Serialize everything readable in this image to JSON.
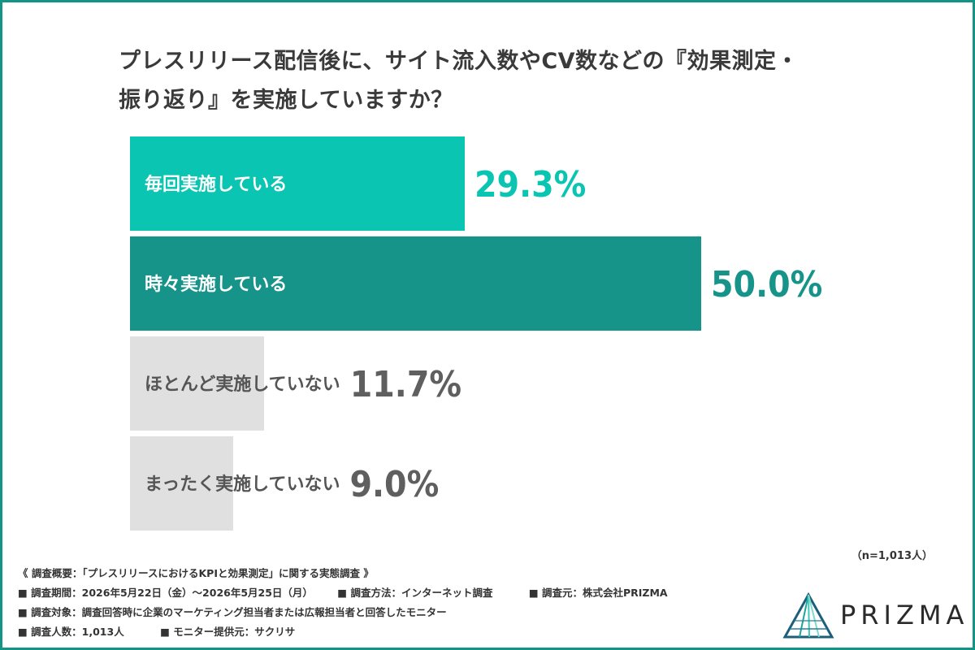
{
  "title_lines": [
    "プレスリリース配信後に、サイト流入数やCV数などの『効果測定・",
    "振り返り』を実施していますか？"
  ],
  "colors": {
    "frame": "#149487",
    "bar_1": "#0bc5b3",
    "bar_2": "#17948a",
    "bar_other": "#e0e0e0",
    "pct_1": "#0bc5b3",
    "pct_2": "#17948a",
    "pct_other": "#5f5f5f"
  },
  "chart_data": {
    "type": "bar",
    "orientation": "horizontal",
    "categories": [
      "毎回実施している",
      "時々実施している",
      "ほとんど実施していない",
      "まったく実施していない"
    ],
    "values": [
      29.3,
      50.0,
      11.7,
      9.0
    ],
    "value_labels": [
      "29.3%",
      "50.0%",
      "11.7%",
      "9.0%"
    ],
    "unit": "%",
    "xlim": [
      0,
      50
    ],
    "grid": false
  },
  "sample_size": "（n=1,013人）",
  "notes": {
    "line1": "《 調査概要：「プレスリリースにおけるKPIと効果測定」に関する実態調査 》",
    "period": "■ 調査期間：2026年5月22日（金）〜2026年5月25日（月）",
    "method": "■ 調査方法：インターネット調査",
    "source": "■ 調査元：株式会社PRIZMA",
    "target": "■ 調査対象：調査回答時に企業のマーケティング担当者または広報担当者と回答したモニター",
    "count": "■ 調査人数：1,013人",
    "provider": "■ モニター提供元：サクリサ"
  },
  "logo": {
    "text": "PRIZMA",
    "icon": "prism-triangle-icon"
  }
}
